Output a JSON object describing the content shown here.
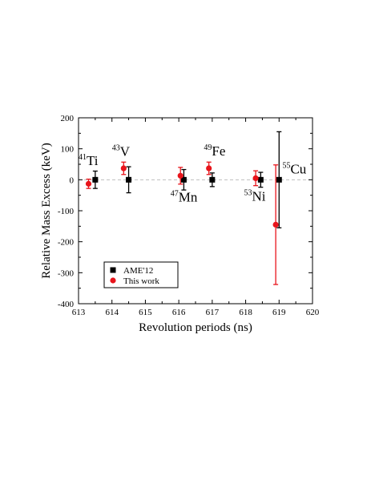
{
  "chart_data": {
    "type": "scatter",
    "xlabel": "Revolution periods (ns)",
    "ylabel": "Relative Mass Excess (keV)",
    "xlim": [
      613,
      620
    ],
    "ylim": [
      -400,
      200
    ],
    "x_ticks": [
      613,
      614,
      615,
      616,
      617,
      618,
      619,
      620
    ],
    "y_ticks": [
      -400,
      -300,
      -200,
      -100,
      0,
      100,
      200
    ],
    "x_tick_labels": [
      "613",
      "614",
      "615",
      "616",
      "617",
      "618",
      "619",
      "620"
    ],
    "y_tick_labels": [
      "-400",
      "-300",
      "-200",
      "-100",
      "0",
      "100",
      "200"
    ],
    "reference_line": {
      "y": 0,
      "style": "dashed",
      "color": "#bfbfbf"
    },
    "legend": {
      "position": "bottom-left"
    },
    "series": [
      {
        "name": "AME'12",
        "marker": "square",
        "color": "#000000",
        "points": [
          {
            "x": 613.5,
            "y": 0,
            "err": 28
          },
          {
            "x": 614.5,
            "y": 0,
            "err": 42
          },
          {
            "x": 616.15,
            "y": 0,
            "err": 33
          },
          {
            "x": 617.0,
            "y": 0,
            "err": 22
          },
          {
            "x": 618.45,
            "y": 0,
            "err": 24
          },
          {
            "x": 619.0,
            "y": 0,
            "err": 155
          }
        ]
      },
      {
        "name": "This work",
        "marker": "circle",
        "color": "#e8141b",
        "points": [
          {
            "x": 613.3,
            "y": -13,
            "err": 15
          },
          {
            "x": 614.35,
            "y": 37,
            "err": 20
          },
          {
            "x": 616.05,
            "y": 13,
            "err": 27
          },
          {
            "x": 616.9,
            "y": 37,
            "err": 20
          },
          {
            "x": 618.3,
            "y": 5,
            "err": 24
          },
          {
            "x": 618.9,
            "y": -145,
            "err": 193
          }
        ]
      }
    ],
    "annotations": [
      {
        "mass": "41",
        "element": "Ti",
        "x": 613.0,
        "y": 48
      },
      {
        "mass": "43",
        "element": "V",
        "x": 614.0,
        "y": 77
      },
      {
        "mass": "47",
        "element": "Mn",
        "x": 615.75,
        "y": -70
      },
      {
        "mass": "49",
        "element": "Fe",
        "x": 616.75,
        "y": 78
      },
      {
        "mass": "53",
        "element": "Ni",
        "x": 617.95,
        "y": -68
      },
      {
        "mass": "55",
        "element": "Cu",
        "x": 619.1,
        "y": 20
      }
    ]
  }
}
